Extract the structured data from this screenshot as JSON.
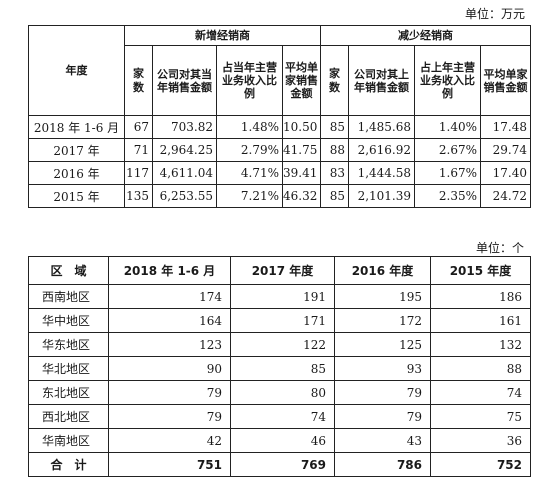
{
  "table1": {
    "unit": "单位：万元",
    "header": {
      "year": "年度",
      "group_new": "新增经销商",
      "group_reduced": "减少经销商",
      "new_cols": [
        "家数",
        "公司对其当年销售金额",
        "占当年主营业务收入比例",
        "平均单家销售金额"
      ],
      "reduced_cols": [
        "家数",
        "公司对其上年销售金额",
        "占上年主营业务收入比例",
        "平均单家销售金额"
      ]
    },
    "rows": [
      {
        "year": "2018 年 1-6 月",
        "new": [
          "67",
          "703.82",
          "1.48%",
          "10.50"
        ],
        "reduced": [
          "85",
          "1,485.68",
          "1.40%",
          "17.48"
        ]
      },
      {
        "year": "2017 年",
        "new": [
          "71",
          "2,964.25",
          "2.79%",
          "41.75"
        ],
        "reduced": [
          "88",
          "2,616.92",
          "2.67%",
          "29.74"
        ]
      },
      {
        "year": "2016 年",
        "new": [
          "117",
          "4,611.04",
          "4.71%",
          "39.41"
        ],
        "reduced": [
          "83",
          "1,444.58",
          "1.67%",
          "17.40"
        ]
      },
      {
        "year": "2015 年",
        "new": [
          "135",
          "6,253.55",
          "7.21%",
          "46.32"
        ],
        "reduced": [
          "85",
          "2,101.39",
          "2.35%",
          "24.72"
        ]
      }
    ]
  },
  "table2": {
    "unit": "单位：个",
    "headers": [
      "区　域",
      "2018 年 1-6 月",
      "2017 年度",
      "2016 年度",
      "2015 年度"
    ],
    "rows": [
      [
        "西南地区",
        "174",
        "191",
        "195",
        "186"
      ],
      [
        "华中地区",
        "164",
        "171",
        "172",
        "161"
      ],
      [
        "华东地区",
        "123",
        "122",
        "125",
        "132"
      ],
      [
        "华北地区",
        "90",
        "85",
        "93",
        "88"
      ],
      [
        "东北地区",
        "79",
        "80",
        "79",
        "74"
      ],
      [
        "西北地区",
        "79",
        "74",
        "79",
        "75"
      ],
      [
        "华南地区",
        "42",
        "46",
        "43",
        "36"
      ]
    ],
    "total": [
      "合　计",
      "751",
      "769",
      "786",
      "752"
    ]
  }
}
